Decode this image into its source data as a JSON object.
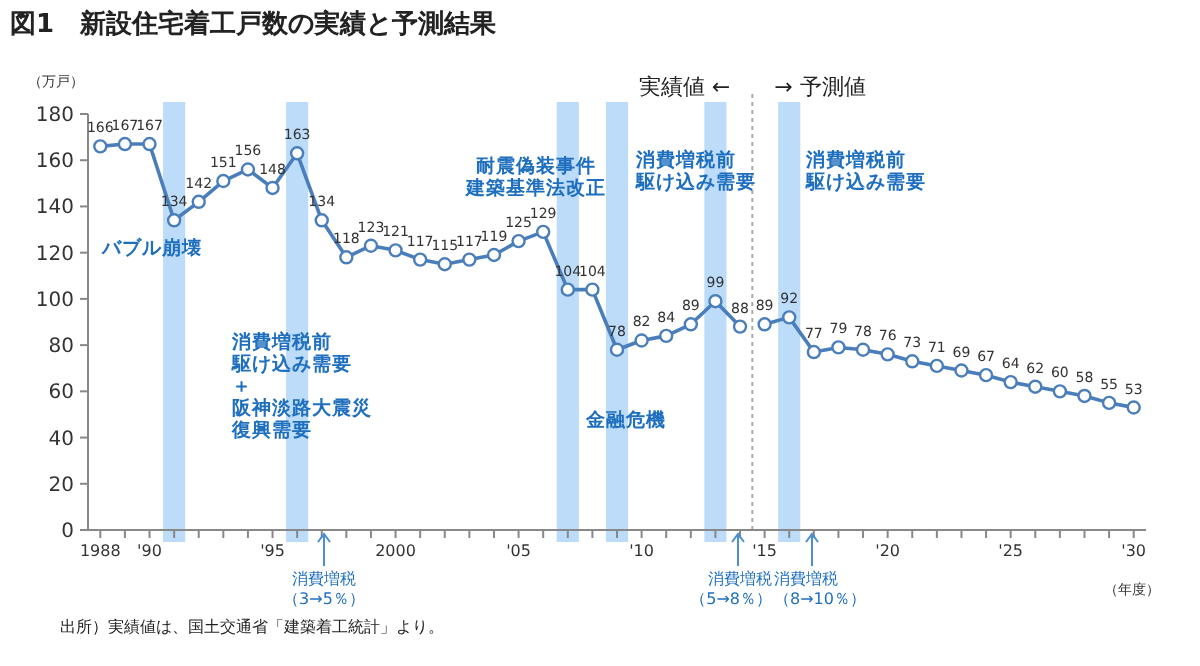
{
  "chart_data": {
    "type": "line",
    "title": "図1　新設住宅着工戸数の実績と予測結果",
    "ylabel": "（万戸）",
    "xlabel": "（年度）",
    "xlim": [
      1987.5,
      2030.5
    ],
    "xticks": [
      {
        "value": 1988,
        "label": "1988"
      },
      {
        "value": 1989,
        "label": null
      },
      {
        "value": 1990,
        "label": "'90"
      },
      {
        "value": 1991,
        "label": null
      },
      {
        "value": 1992,
        "label": null
      },
      {
        "value": 1993,
        "label": null
      },
      {
        "value": 1994,
        "label": null
      },
      {
        "value": 1995,
        "label": "'95"
      },
      {
        "value": 1996,
        "label": null
      },
      {
        "value": 1997,
        "label": null
      },
      {
        "value": 1998,
        "label": null
      },
      {
        "value": 1999,
        "label": null
      },
      {
        "value": 2000,
        "label": "2000"
      },
      {
        "value": 2001,
        "label": null
      },
      {
        "value": 2002,
        "label": null
      },
      {
        "value": 2003,
        "label": null
      },
      {
        "value": 2004,
        "label": null
      },
      {
        "value": 2005,
        "label": "'05"
      },
      {
        "value": 2006,
        "label": null
      },
      {
        "value": 2007,
        "label": null
      },
      {
        "value": 2008,
        "label": null
      },
      {
        "value": 2009,
        "label": null
      },
      {
        "value": 2010,
        "label": "'10"
      },
      {
        "value": 2011,
        "label": null
      },
      {
        "value": 2012,
        "label": null
      },
      {
        "value": 2013,
        "label": null
      },
      {
        "value": 2014,
        "label": null
      },
      {
        "value": 2015,
        "label": "'15"
      },
      {
        "value": 2016,
        "label": null
      },
      {
        "value": 2017,
        "label": null
      },
      {
        "value": 2018,
        "label": null
      },
      {
        "value": 2019,
        "label": null
      },
      {
        "value": 2020,
        "label": "'20"
      },
      {
        "value": 2021,
        "label": null
      },
      {
        "value": 2022,
        "label": null
      },
      {
        "value": 2023,
        "label": null
      },
      {
        "value": 2024,
        "label": null
      },
      {
        "value": 2025,
        "label": "'25"
      },
      {
        "value": 2026,
        "label": null
      },
      {
        "value": 2027,
        "label": null
      },
      {
        "value": 2028,
        "label": null
      },
      {
        "value": 2029,
        "label": null
      },
      {
        "value": 2030,
        "label": "'30"
      }
    ],
    "ylim": [
      0,
      180
    ],
    "yticks": [
      0,
      20,
      40,
      60,
      80,
      100,
      120,
      140,
      160,
      180
    ],
    "series": [
      {
        "color": "#4a7ebb",
        "x": [
          1988,
          1989,
          1990,
          1991,
          1992,
          1993,
          1994,
          1995,
          1996,
          1997,
          1998,
          1999,
          2000,
          2001,
          2002,
          2003,
          2004,
          2005,
          2006,
          2007,
          2008,
          2009,
          2010,
          2011,
          2012,
          2013,
          2014
        ],
        "values": [
          166,
          167,
          167,
          134,
          142,
          151,
          156,
          148,
          163,
          134,
          118,
          123,
          121,
          117,
          115,
          117,
          119,
          125,
          129,
          104,
          104,
          78,
          82,
          84,
          89,
          99,
          88
        ]
      },
      {
        "color": "#4a7ebb",
        "x": [
          2015,
          2016,
          2017,
          2018,
          2019,
          2020,
          2021,
          2022,
          2023,
          2024,
          2025,
          2026,
          2027,
          2028,
          2029,
          2030
        ],
        "values": [
          89,
          92,
          77,
          79,
          78,
          76,
          73,
          71,
          69,
          67,
          64,
          62,
          60,
          58,
          55,
          53
        ]
      }
    ],
    "marker": "circle",
    "line_style": "solid",
    "data_labels": true,
    "grid": false,
    "bands": [
      {
        "axis": "x",
        "from": 1990.55,
        "to": 1991.45,
        "label": "バブル崩壊",
        "color": "#bcdcfa"
      },
      {
        "axis": "x",
        "from": 1995.55,
        "to": 1996.45,
        "label": "消費増税前駆け込み需要＋阪神淡路大震災復興需要",
        "color": "#bcdcfa"
      },
      {
        "axis": "x",
        "from": 2006.55,
        "to": 2007.45,
        "label": "耐震偽装事件建築基準法改正",
        "color": "#bcdcfa"
      },
      {
        "axis": "x",
        "from": 2008.55,
        "to": 2009.45,
        "label": "金融危機",
        "color": "#bcdcfa"
      },
      {
        "axis": "x",
        "from": 2012.55,
        "to": 2013.45,
        "label": "消費増税前駆け込み需要",
        "color": "#bcdcfa"
      },
      {
        "axis": "x",
        "from": 2015.55,
        "to": 2016.45,
        "label": "消費増税前駆け込み需要",
        "color": "#bcdcfa"
      }
    ],
    "ref_lines": [
      {
        "axis": "x",
        "value": 2014.5,
        "label": "実績値 ←　　→ 予測値",
        "color": "#aaaaaa",
        "line_style": "dotted"
      }
    ],
    "annotations": [
      "出所）実績値は、国土交通省「建築着工統計」より。",
      "消費増税（3→5％）",
      "消費増税（5→8％）",
      "消費増税（8→10％）"
    ]
  }
}
